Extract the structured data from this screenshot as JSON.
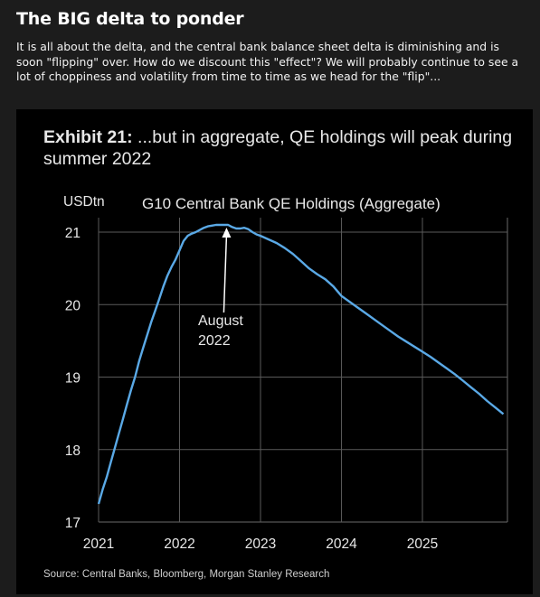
{
  "post": {
    "title": "The BIG delta to ponder",
    "body": "It is all about the delta, and the central bank balance sheet delta is diminishing and is soon \"flipping\" over. How do we discount this \"effect\"? We will probably continue to see a lot of choppiness and volatility from time to time as we head for the \"flip\"..."
  },
  "exhibit": {
    "number": "Exhibit 21:",
    "caption": " ...but in aggregate, QE holdings will peak during summer 2022",
    "source": "Source: Central Banks, Bloomberg, Morgan Stanley Research"
  },
  "chart_data": {
    "type": "line",
    "title": "G10 Central Bank QE Holdings (Aggregate)",
    "unit_label": "USDtn",
    "xlabel": "",
    "ylabel": "",
    "xlim": [
      2021.0,
      2026.05
    ],
    "ylim": [
      17,
      21.2
    ],
    "x_ticks": [
      "2021",
      "2022",
      "2023",
      "2024",
      "2025"
    ],
    "y_ticks": [
      "17",
      "18",
      "19",
      "20",
      "21"
    ],
    "grid": true,
    "line_color": "#5aa9e6",
    "annotation": {
      "text_lines": [
        "August",
        "2022"
      ],
      "x": 2022.58,
      "y": 21.1
    },
    "series": [
      {
        "x": [
          2021.0,
          2021.05,
          2021.1,
          2021.15,
          2021.2,
          2021.25,
          2021.3,
          2021.35,
          2021.4,
          2021.45,
          2021.5,
          2021.55,
          2021.6,
          2021.65,
          2021.7,
          2021.75,
          2021.8,
          2021.85,
          2021.9,
          2021.95,
          2022.0,
          2022.05,
          2022.1,
          2022.15,
          2022.2,
          2022.25,
          2022.3,
          2022.35,
          2022.4,
          2022.45,
          2022.5,
          2022.55,
          2022.6,
          2022.65,
          2022.7,
          2022.75,
          2022.8,
          2022.85,
          2022.9,
          2022.95,
          2023.0,
          2023.1,
          2023.2,
          2023.3,
          2023.4,
          2023.5,
          2023.6,
          2023.7,
          2023.8,
          2023.9,
          2024.0,
          2024.1,
          2024.2,
          2024.3,
          2024.4,
          2024.5,
          2024.6,
          2024.7,
          2024.8,
          2024.9,
          2025.0,
          2025.1,
          2025.2,
          2025.3,
          2025.4,
          2025.5,
          2025.6,
          2025.7,
          2025.8,
          2025.9,
          2026.0
        ],
        "y": [
          17.25,
          17.45,
          17.62,
          17.82,
          18.02,
          18.22,
          18.42,
          18.62,
          18.82,
          19.0,
          19.22,
          19.4,
          19.58,
          19.76,
          19.92,
          20.08,
          20.25,
          20.4,
          20.52,
          20.62,
          20.75,
          20.88,
          20.95,
          20.98,
          21.0,
          21.03,
          21.06,
          21.08,
          21.09,
          21.1,
          21.1,
          21.1,
          21.1,
          21.07,
          21.05,
          21.05,
          21.06,
          21.04,
          21.0,
          20.97,
          20.95,
          20.9,
          20.85,
          20.78,
          20.7,
          20.6,
          20.5,
          20.42,
          20.35,
          20.25,
          20.12,
          20.04,
          19.96,
          19.88,
          19.8,
          19.72,
          19.64,
          19.56,
          19.49,
          19.42,
          19.35,
          19.28,
          19.2,
          19.12,
          19.04,
          18.95,
          18.86,
          18.77,
          18.67,
          18.58,
          18.49
        ]
      }
    ]
  }
}
